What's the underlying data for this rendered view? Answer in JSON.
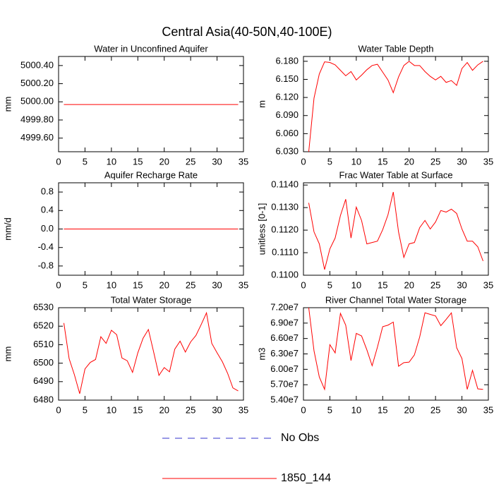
{
  "title": "Central Asia(40-50N,40-100E)",
  "legend": [
    {
      "name": "No Obs",
      "color": "#3333cc",
      "dash": true
    },
    {
      "name": "1850_144",
      "color": "#ff0000",
      "dash": false
    }
  ],
  "chart_data": [
    {
      "type": "line",
      "title": "Water in Unconfined Aquifer",
      "ylabel": "mm",
      "x": [
        1,
        2,
        3,
        4,
        5,
        6,
        7,
        8,
        9,
        10,
        11,
        12,
        13,
        14,
        15,
        16,
        17,
        18,
        19,
        20,
        21,
        22,
        23,
        24,
        25,
        26,
        27,
        28,
        29,
        30,
        31,
        32,
        33,
        34
      ],
      "xlim": [
        0,
        35
      ],
      "xticks": [
        0,
        5,
        10,
        15,
        20,
        25,
        30,
        35
      ],
      "ylim": [
        4999.45,
        5000.5
      ],
      "yticks": [
        {
          "value": 4999.6,
          "label": "4999.60"
        },
        {
          "value": 4999.8,
          "label": "4999.80"
        },
        {
          "value": 5000,
          "label": "5000.00"
        },
        {
          "value": 5000.2,
          "label": "5000.20"
        },
        {
          "value": 5000.4,
          "label": "5000.40"
        }
      ],
      "color": "#ff0000",
      "values": [
        4999.97,
        4999.97,
        4999.97,
        4999.97,
        4999.97,
        4999.97,
        4999.97,
        4999.97,
        4999.97,
        4999.97,
        4999.97,
        4999.97,
        4999.97,
        4999.97,
        4999.97,
        4999.97,
        4999.97,
        4999.97,
        4999.97,
        4999.97,
        4999.97,
        4999.97,
        4999.97,
        4999.97,
        4999.97,
        4999.97,
        4999.97,
        4999.97,
        4999.97,
        4999.97,
        4999.97,
        4999.97,
        4999.97,
        4999.97
      ]
    },
    {
      "type": "line",
      "title": "Water Table Depth",
      "ylabel": "m",
      "x": [
        1,
        2,
        3,
        4,
        5,
        6,
        7,
        8,
        9,
        10,
        11,
        12,
        13,
        14,
        15,
        16,
        17,
        18,
        19,
        20,
        21,
        22,
        23,
        24,
        25,
        26,
        27,
        28,
        29,
        30,
        31,
        32,
        33,
        34
      ],
      "xlim": [
        0,
        35
      ],
      "xticks": [
        0,
        5,
        10,
        15,
        20,
        25,
        30,
        35
      ],
      "ylim": [
        6.03,
        6.188
      ],
      "yticks": [
        {
          "value": 6.03,
          "label": "6.030"
        },
        {
          "value": 6.06,
          "label": "6.060"
        },
        {
          "value": 6.09,
          "label": "6.090"
        },
        {
          "value": 6.12,
          "label": "6.120"
        },
        {
          "value": 6.15,
          "label": "6.150"
        },
        {
          "value": 6.18,
          "label": "6.180"
        }
      ],
      "color": "#ff0000",
      "values": [
        6.03,
        6.119,
        6.159,
        6.179,
        6.178,
        6.174,
        6.165,
        6.156,
        6.163,
        6.149,
        6.157,
        6.166,
        6.173,
        6.175,
        6.162,
        6.149,
        6.128,
        6.154,
        6.173,
        6.18,
        6.173,
        6.173,
        6.163,
        6.155,
        6.149,
        6.155,
        6.145,
        6.148,
        6.14,
        6.168,
        6.178,
        6.165,
        6.174,
        6.18
      ]
    },
    {
      "type": "line",
      "title": "Aquifer Recharge Rate",
      "ylabel": "mm/d",
      "x": [
        1,
        2,
        3,
        4,
        5,
        6,
        7,
        8,
        9,
        10,
        11,
        12,
        13,
        14,
        15,
        16,
        17,
        18,
        19,
        20,
        21,
        22,
        23,
        24,
        25,
        26,
        27,
        28,
        29,
        30,
        31,
        32,
        33,
        34
      ],
      "xlim": [
        0,
        35
      ],
      "xticks": [
        0,
        5,
        10,
        15,
        20,
        25,
        30,
        35
      ],
      "ylim": [
        -1,
        1
      ],
      "yticks": [
        -0.8,
        -0.4,
        {
          "value": 0,
          "label": "0.0"
        },
        0.4,
        0.8
      ],
      "color": "#ff0000",
      "values": [
        0,
        0,
        0,
        0,
        0,
        0,
        0,
        0,
        0,
        0,
        0,
        0,
        0,
        0,
        0,
        0,
        0,
        0,
        0,
        0,
        0,
        0,
        0,
        0,
        0,
        0,
        0,
        0,
        0,
        0,
        0,
        0,
        0,
        0
      ]
    },
    {
      "type": "line",
      "title": "Frac Water Table at Surface",
      "ylabel": "unitless [0-1]",
      "x": [
        1,
        2,
        3,
        4,
        5,
        6,
        7,
        8,
        9,
        10,
        11,
        12,
        13,
        14,
        15,
        16,
        17,
        18,
        19,
        20,
        21,
        22,
        23,
        24,
        25,
        26,
        27,
        28,
        29,
        30,
        31,
        32,
        33,
        34
      ],
      "xlim": [
        0,
        35
      ],
      "xticks": [
        0,
        5,
        10,
        15,
        20,
        25,
        30,
        35
      ],
      "ylim": [
        0.11,
        0.1141
      ],
      "yticks": [
        {
          "value": 0.11,
          "label": "0.1100"
        },
        {
          "value": 0.111,
          "label": "0.1110"
        },
        {
          "value": 0.112,
          "label": "0.1120"
        },
        {
          "value": 0.113,
          "label": "0.1130"
        },
        {
          "value": 0.114,
          "label": "0.1140"
        }
      ],
      "color": "#ff0000",
      "values": [
        0.11321,
        0.11192,
        0.11139,
        0.11025,
        0.11117,
        0.11165,
        0.11265,
        0.11337,
        0.11165,
        0.11302,
        0.11243,
        0.11139,
        0.11145,
        0.11151,
        0.11202,
        0.11268,
        0.11369,
        0.11192,
        0.11079,
        0.11139,
        0.11145,
        0.11211,
        0.11243,
        0.11205,
        0.11236,
        0.11287,
        0.1128,
        0.11293,
        0.11274,
        0.11205,
        0.11151,
        0.11151,
        0.11126,
        0.11063
      ]
    },
    {
      "type": "line",
      "title": "Total Water Storage",
      "ylabel": "mm",
      "x": [
        1,
        2,
        3,
        4,
        5,
        6,
        7,
        8,
        9,
        10,
        11,
        12,
        13,
        14,
        15,
        16,
        17,
        18,
        19,
        20,
        21,
        22,
        23,
        24,
        25,
        26,
        27,
        28,
        29,
        30,
        31,
        32,
        33,
        34
      ],
      "xlim": [
        0,
        35
      ],
      "xticks": [
        0,
        5,
        10,
        15,
        20,
        25,
        30,
        35
      ],
      "ylim": [
        6480,
        6530
      ],
      "yticks": [
        6480,
        6490,
        6500,
        6510,
        6520,
        6530
      ],
      "color": "#ff0000",
      "values": [
        6521.7,
        6502.4,
        6493.7,
        6483.5,
        6496.9,
        6500.4,
        6502.0,
        6514.3,
        6510.7,
        6517.8,
        6515.4,
        6502.8,
        6501.3,
        6495.0,
        6505.6,
        6513.5,
        6518.2,
        6506.0,
        6493.4,
        6497.6,
        6495.3,
        6507.6,
        6511.9,
        6506.0,
        6511.5,
        6515.0,
        6520.9,
        6527.2,
        6510.7,
        6505.6,
        6500.8,
        6494.5,
        6486.6,
        6485.0
      ]
    },
    {
      "type": "line",
      "title": "River Channel Total Water Storage",
      "ylabel": "m3",
      "x": [
        1,
        2,
        3,
        4,
        5,
        6,
        7,
        8,
        9,
        10,
        11,
        12,
        13,
        14,
        15,
        16,
        17,
        18,
        19,
        20,
        21,
        22,
        23,
        24,
        25,
        26,
        27,
        28,
        29,
        30,
        31,
        32,
        33,
        34
      ],
      "xlim": [
        0,
        35
      ],
      "xticks": [
        0,
        5,
        10,
        15,
        20,
        25,
        30,
        35
      ],
      "ylim": [
        54000000,
        72000000
      ],
      "yticks": [
        {
          "value": 54000000,
          "label": "5.40e7"
        },
        {
          "value": 57000000,
          "label": "5.70e7"
        },
        {
          "value": 60000000,
          "label": "6.00e7"
        },
        {
          "value": 63000000,
          "label": "6.30e7"
        },
        {
          "value": 66000000,
          "label": "6.60e7"
        },
        {
          "value": 69000000,
          "label": "6.90e7"
        },
        {
          "value": 72000000,
          "label": "7.20e7"
        }
      ],
      "color": "#ff0000",
      "values": [
        72000000,
        63600000,
        58500000,
        56100000,
        64800000,
        63200000,
        70900000,
        68600000,
        61700000,
        67000000,
        66500000,
        63800000,
        60700000,
        64300000,
        68300000,
        68600000,
        69200000,
        60600000,
        61300000,
        61400000,
        62800000,
        66300000,
        71000000,
        70700000,
        70400000,
        68500000,
        69700000,
        71000000,
        64200000,
        62100000,
        56100000,
        59800000,
        56200000,
        56100000
      ]
    }
  ]
}
